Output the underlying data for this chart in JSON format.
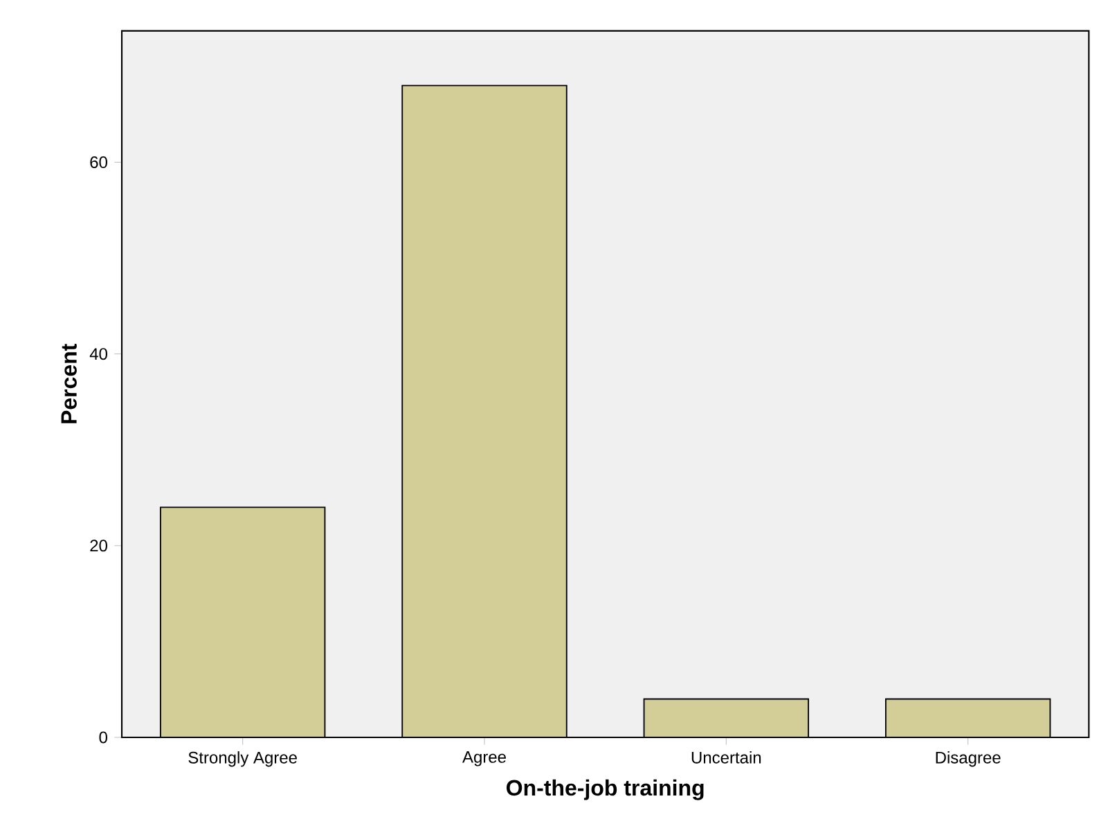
{
  "chart_data": {
    "type": "bar",
    "xlabel": "On-the-job training",
    "ylabel": "Percent",
    "categories": [
      "Strongly Agree",
      "Agree",
      "Uncertain",
      "Disagree"
    ],
    "values": [
      24,
      68,
      4,
      4
    ],
    "color": "#d3ce97",
    "ylim": [
      0,
      73.7
    ],
    "yticks": [
      0,
      20,
      40,
      60
    ]
  }
}
